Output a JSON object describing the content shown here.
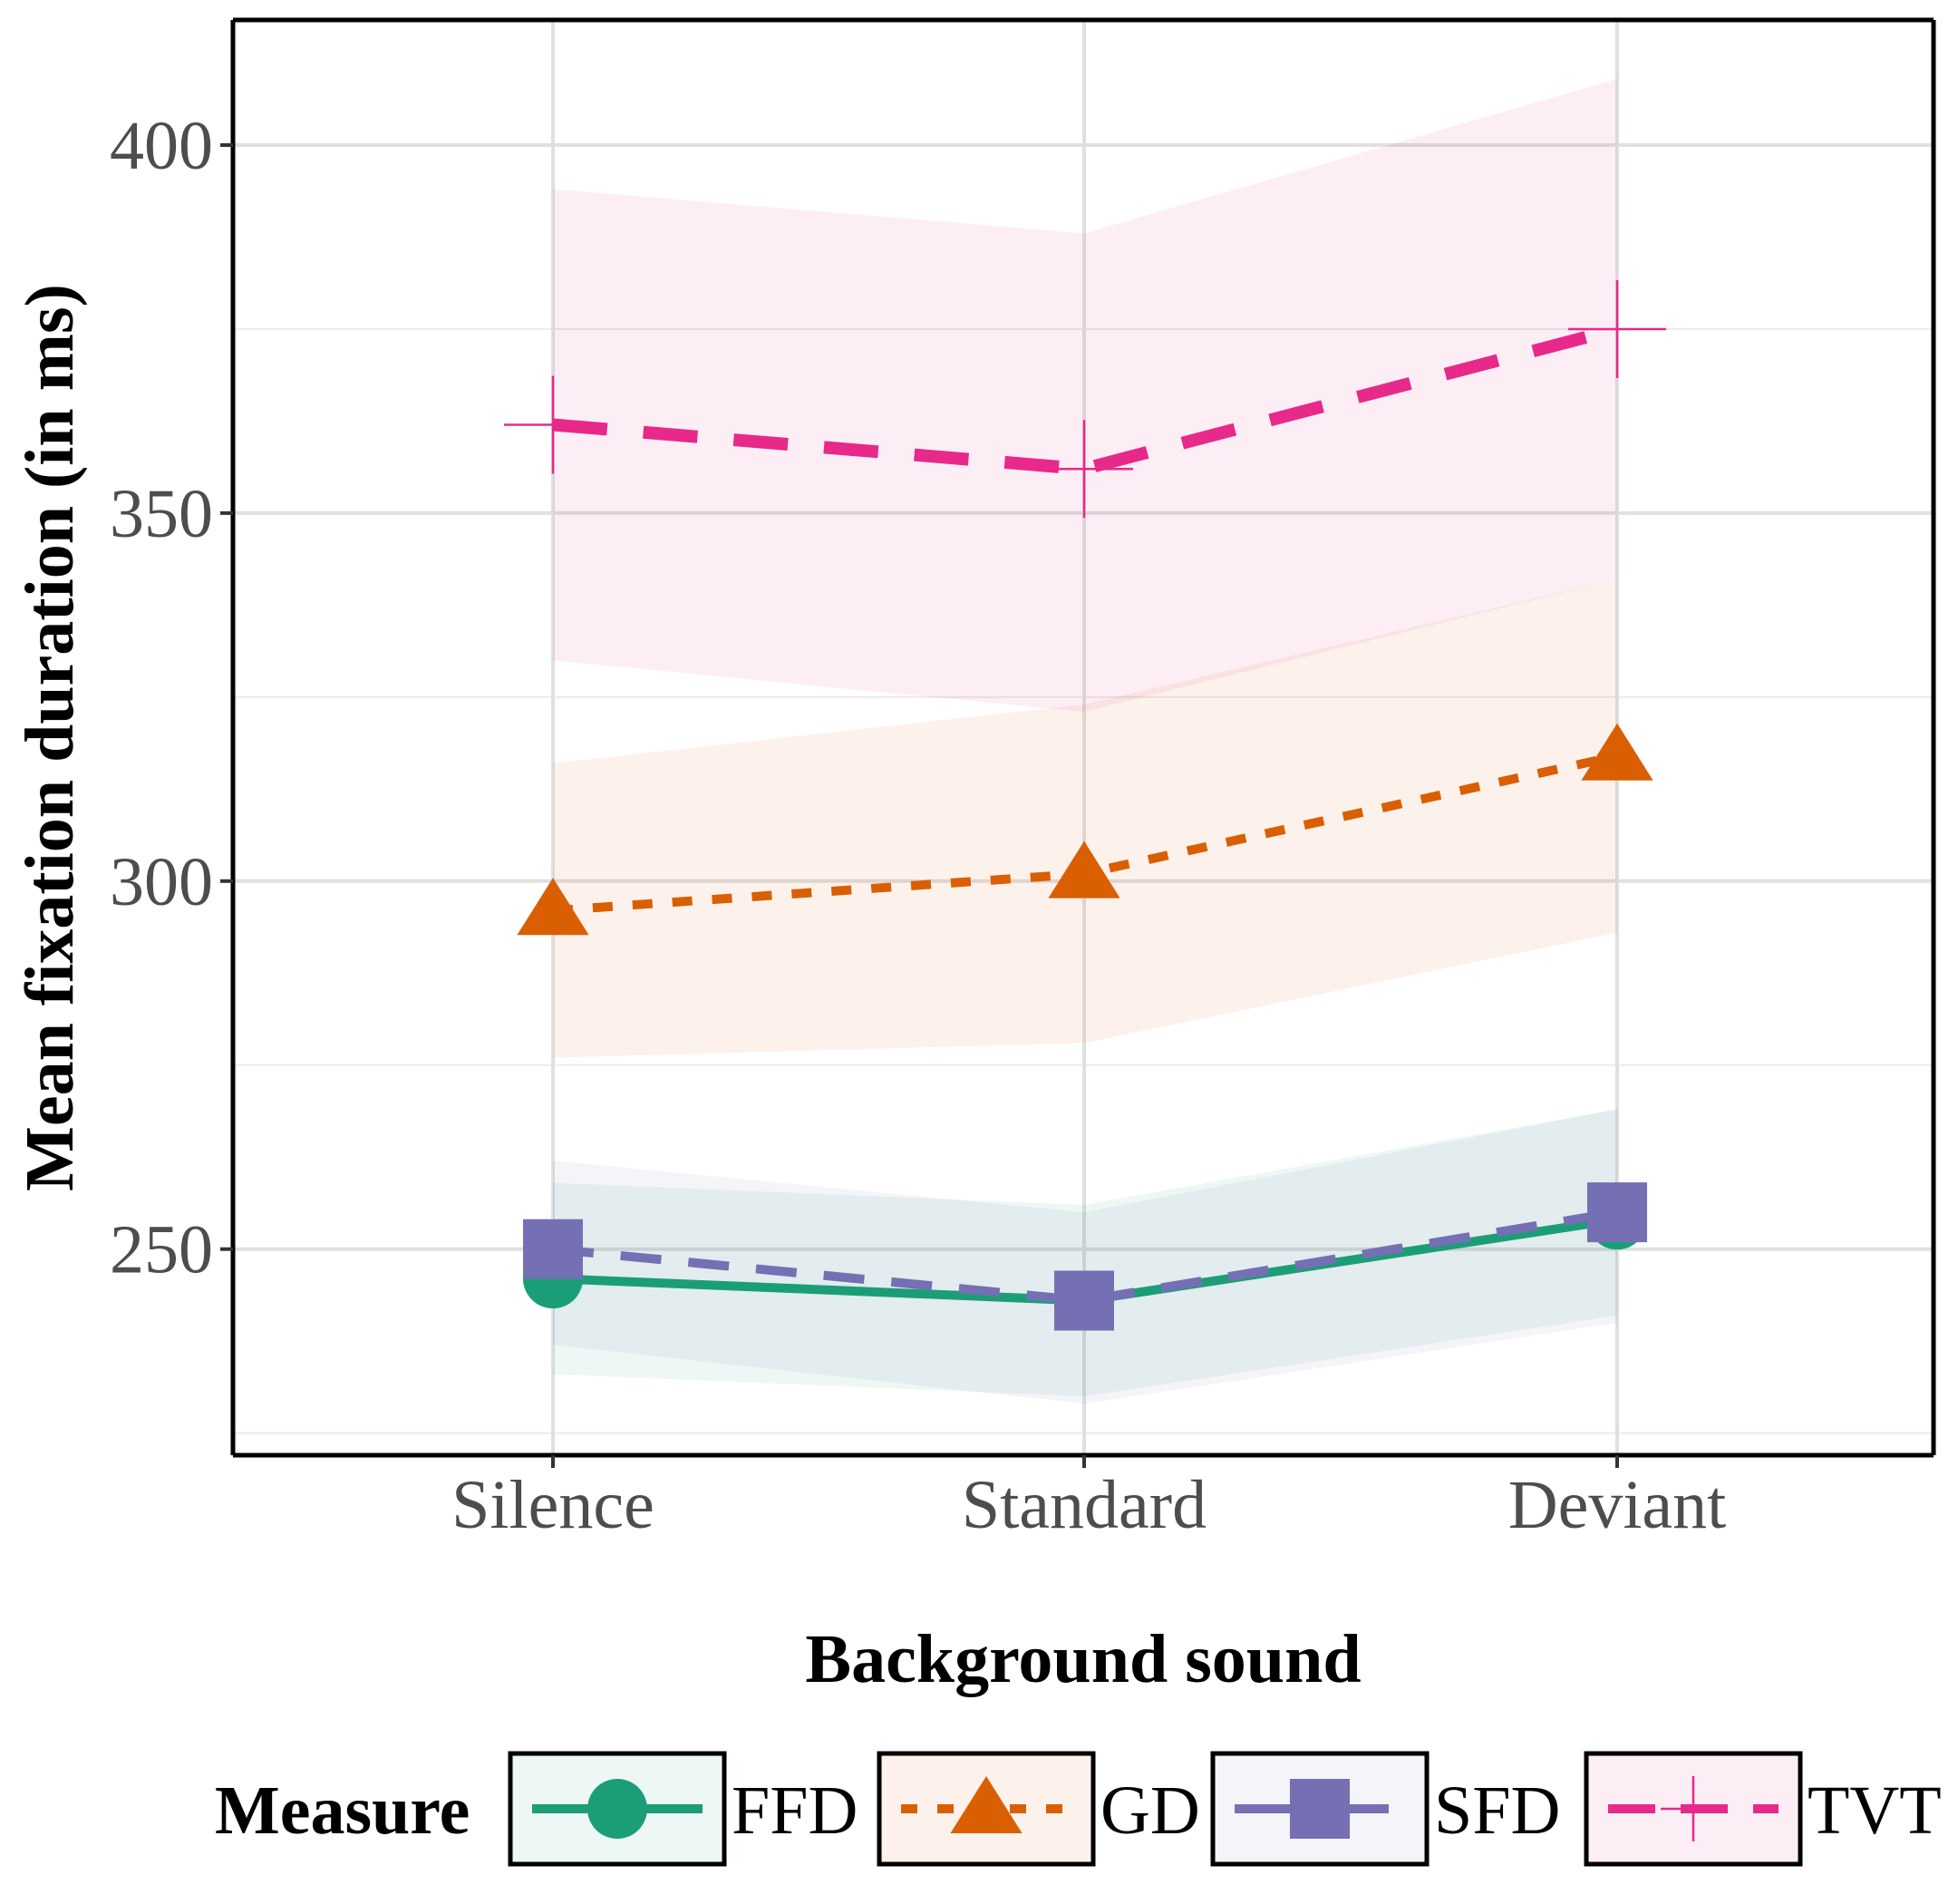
{
  "chart_data": {
    "type": "line",
    "title": "",
    "xlabel": "Background sound",
    "ylabel": "Mean fixation duration (in ms)",
    "categories": [
      "Silence",
      "Standard",
      "Deviant"
    ],
    "ylim": [
      222,
      417
    ],
    "yticks": [
      250,
      300,
      350,
      400
    ],
    "grid": true,
    "legend": {
      "title": "Measure",
      "position": "bottom"
    },
    "series": [
      {
        "name": "FFD",
        "color": "#1b9e77",
        "marker": "circle",
        "dash": "solid",
        "values": [
          246,
          243,
          254
        ],
        "lower": [
          233,
          230,
          241
        ],
        "upper": [
          259,
          256,
          269
        ]
      },
      {
        "name": "GD",
        "color": "#d95f02",
        "marker": "triangle",
        "dash": "dotted",
        "values": [
          296,
          301,
          317
        ],
        "lower": [
          276,
          278,
          293
        ],
        "upper": [
          316,
          324,
          341
        ]
      },
      {
        "name": "SFD",
        "color": "#7570b3",
        "marker": "square",
        "dash": "dashed",
        "values": [
          250,
          243,
          255
        ],
        "lower": [
          237,
          229,
          240
        ],
        "upper": [
          262,
          255,
          269
        ]
      },
      {
        "name": "TVT",
        "color": "#e7298a",
        "marker": "plus",
        "dash": "longdash",
        "values": [
          362,
          356,
          375
        ],
        "lower": [
          330,
          323,
          341
        ],
        "upper": [
          394,
          388,
          409
        ]
      }
    ]
  }
}
